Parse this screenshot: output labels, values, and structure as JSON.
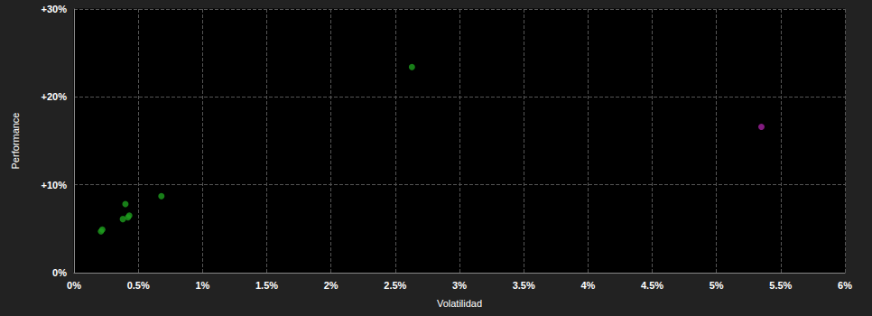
{
  "chart_data": {
    "type": "scatter",
    "x_label": "Volatilidad",
    "y_label": "Performance",
    "x": [
      0.21,
      0.22,
      0.38,
      0.4,
      0.42,
      0.43,
      0.68,
      2.63,
      5.35
    ],
    "values": [
      4.7,
      4.9,
      6.1,
      7.8,
      6.3,
      6.5,
      8.7,
      23.4,
      16.6
    ],
    "colors": [
      "#1e9e1e",
      "#1e9e1e",
      "#1e9e1e",
      "#1e9e1e",
      "#1e9e1e",
      "#1e9e1e",
      "#1e9e1e",
      "#1e9e1e",
      "#a3229f"
    ],
    "xlim": [
      0,
      6
    ],
    "xticks": [
      {
        "value": 0,
        "label": "0%"
      },
      {
        "value": 0.5,
        "label": "0.5%"
      },
      {
        "value": 1,
        "label": "1%"
      },
      {
        "value": 1.5,
        "label": "1.5%"
      },
      {
        "value": 2,
        "label": "2%"
      },
      {
        "value": 2.5,
        "label": "2.5%"
      },
      {
        "value": 3,
        "label": "3%"
      },
      {
        "value": 3.5,
        "label": "3.5%"
      },
      {
        "value": 4,
        "label": "4%"
      },
      {
        "value": 4.5,
        "label": "4.5%"
      },
      {
        "value": 5,
        "label": "5%"
      },
      {
        "value": 5.5,
        "label": "5.5%"
      },
      {
        "value": 6,
        "label": "6%"
      }
    ],
    "ylim": [
      0,
      30
    ],
    "yticks": [
      {
        "value": 0,
        "label": "0%"
      },
      {
        "value": 10,
        "label": "+10%"
      },
      {
        "value": 20,
        "label": "+20%"
      },
      {
        "value": 30,
        "label": "+30%"
      }
    ],
    "grid": true,
    "marker": "circle"
  }
}
